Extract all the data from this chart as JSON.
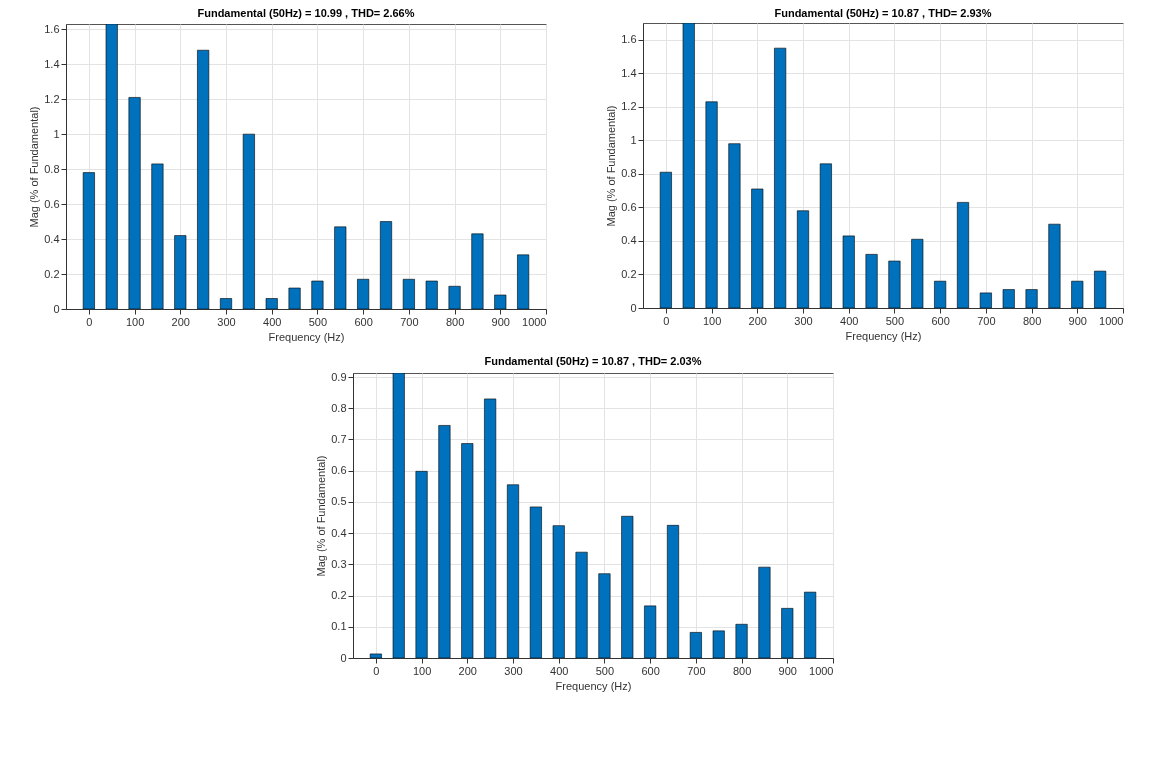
{
  "chart_data": [
    {
      "type": "bar",
      "title": "Fundamental (50Hz) = 10.99 , THD= 2.66%",
      "xlabel": "Frequency (Hz)",
      "ylabel": "Mag (% of Fundamental)",
      "x": [
        0,
        50,
        100,
        150,
        200,
        250,
        300,
        350,
        400,
        450,
        500,
        550,
        600,
        650,
        700,
        750,
        800,
        850,
        900,
        950
      ],
      "series": [
        {
          "color": "#0072bd",
          "values": [
            0.78,
            1.63,
            1.21,
            0.83,
            0.42,
            1.48,
            0.06,
            1.0,
            0.06,
            0.12,
            0.16,
            0.47,
            0.17,
            0.5,
            0.17,
            0.16,
            0.13,
            0.43,
            0.08,
            0.31
          ]
        }
      ],
      "xlim": [
        -50,
        1000
      ],
      "xticks": [
        0,
        100,
        200,
        300,
        400,
        500,
        600,
        700,
        800,
        900,
        1000
      ],
      "ylim": [
        0,
        1.63
      ],
      "yticks": [
        0,
        0.2,
        0.4,
        0.6,
        0.8,
        1,
        1.2,
        1.4,
        1.6
      ],
      "grid": true
    },
    {
      "type": "bar",
      "title": "Fundamental (50Hz) = 10.87 , THD= 2.93%",
      "xlabel": "Frequency (Hz)",
      "ylabel": "Mag (% of Fundamental)",
      "x": [
        0,
        50,
        100,
        150,
        200,
        250,
        300,
        350,
        400,
        450,
        500,
        550,
        600,
        650,
        700,
        750,
        800,
        850,
        900,
        950
      ],
      "series": [
        {
          "color": "#0072bd",
          "values": [
            0.81,
            1.7,
            1.23,
            0.98,
            0.71,
            1.55,
            0.58,
            0.86,
            0.43,
            0.32,
            0.28,
            0.41,
            0.16,
            0.63,
            0.09,
            0.11,
            0.11,
            0.5,
            0.16,
            0.22
          ]
        }
      ],
      "xlim": [
        -50,
        1000
      ],
      "xticks": [
        0,
        100,
        200,
        300,
        400,
        500,
        600,
        700,
        800,
        900,
        1000
      ],
      "ylim": [
        0,
        1.7
      ],
      "yticks": [
        0,
        0.2,
        0.4,
        0.6,
        0.8,
        1,
        1.2,
        1.4,
        1.6
      ],
      "grid": true
    },
    {
      "type": "bar",
      "title": "Fundamental (50Hz) = 10.87 , THD= 2.03%",
      "xlabel": "Frequency (Hz)",
      "ylabel": "Mag (% of Fundamental)",
      "x": [
        0,
        50,
        100,
        150,
        200,
        250,
        300,
        350,
        400,
        450,
        500,
        550,
        600,
        650,
        700,
        750,
        800,
        850,
        900,
        950
      ],
      "series": [
        {
          "color": "#0072bd",
          "values": [
            0.013,
            0.913,
            0.598,
            0.745,
            0.687,
            0.83,
            0.555,
            0.484,
            0.424,
            0.339,
            0.27,
            0.454,
            0.167,
            0.425,
            0.082,
            0.087,
            0.108,
            0.291,
            0.159,
            0.211
          ]
        }
      ],
      "xlim": [
        -50,
        1000
      ],
      "xticks": [
        0,
        100,
        200,
        300,
        400,
        500,
        600,
        700,
        800,
        900,
        1000
      ],
      "ylim": [
        0,
        0.913
      ],
      "yticks": [
        0,
        0.1,
        0.2,
        0.3,
        0.4,
        0.5,
        0.6,
        0.7,
        0.8,
        0.9
      ],
      "grid": true
    }
  ]
}
